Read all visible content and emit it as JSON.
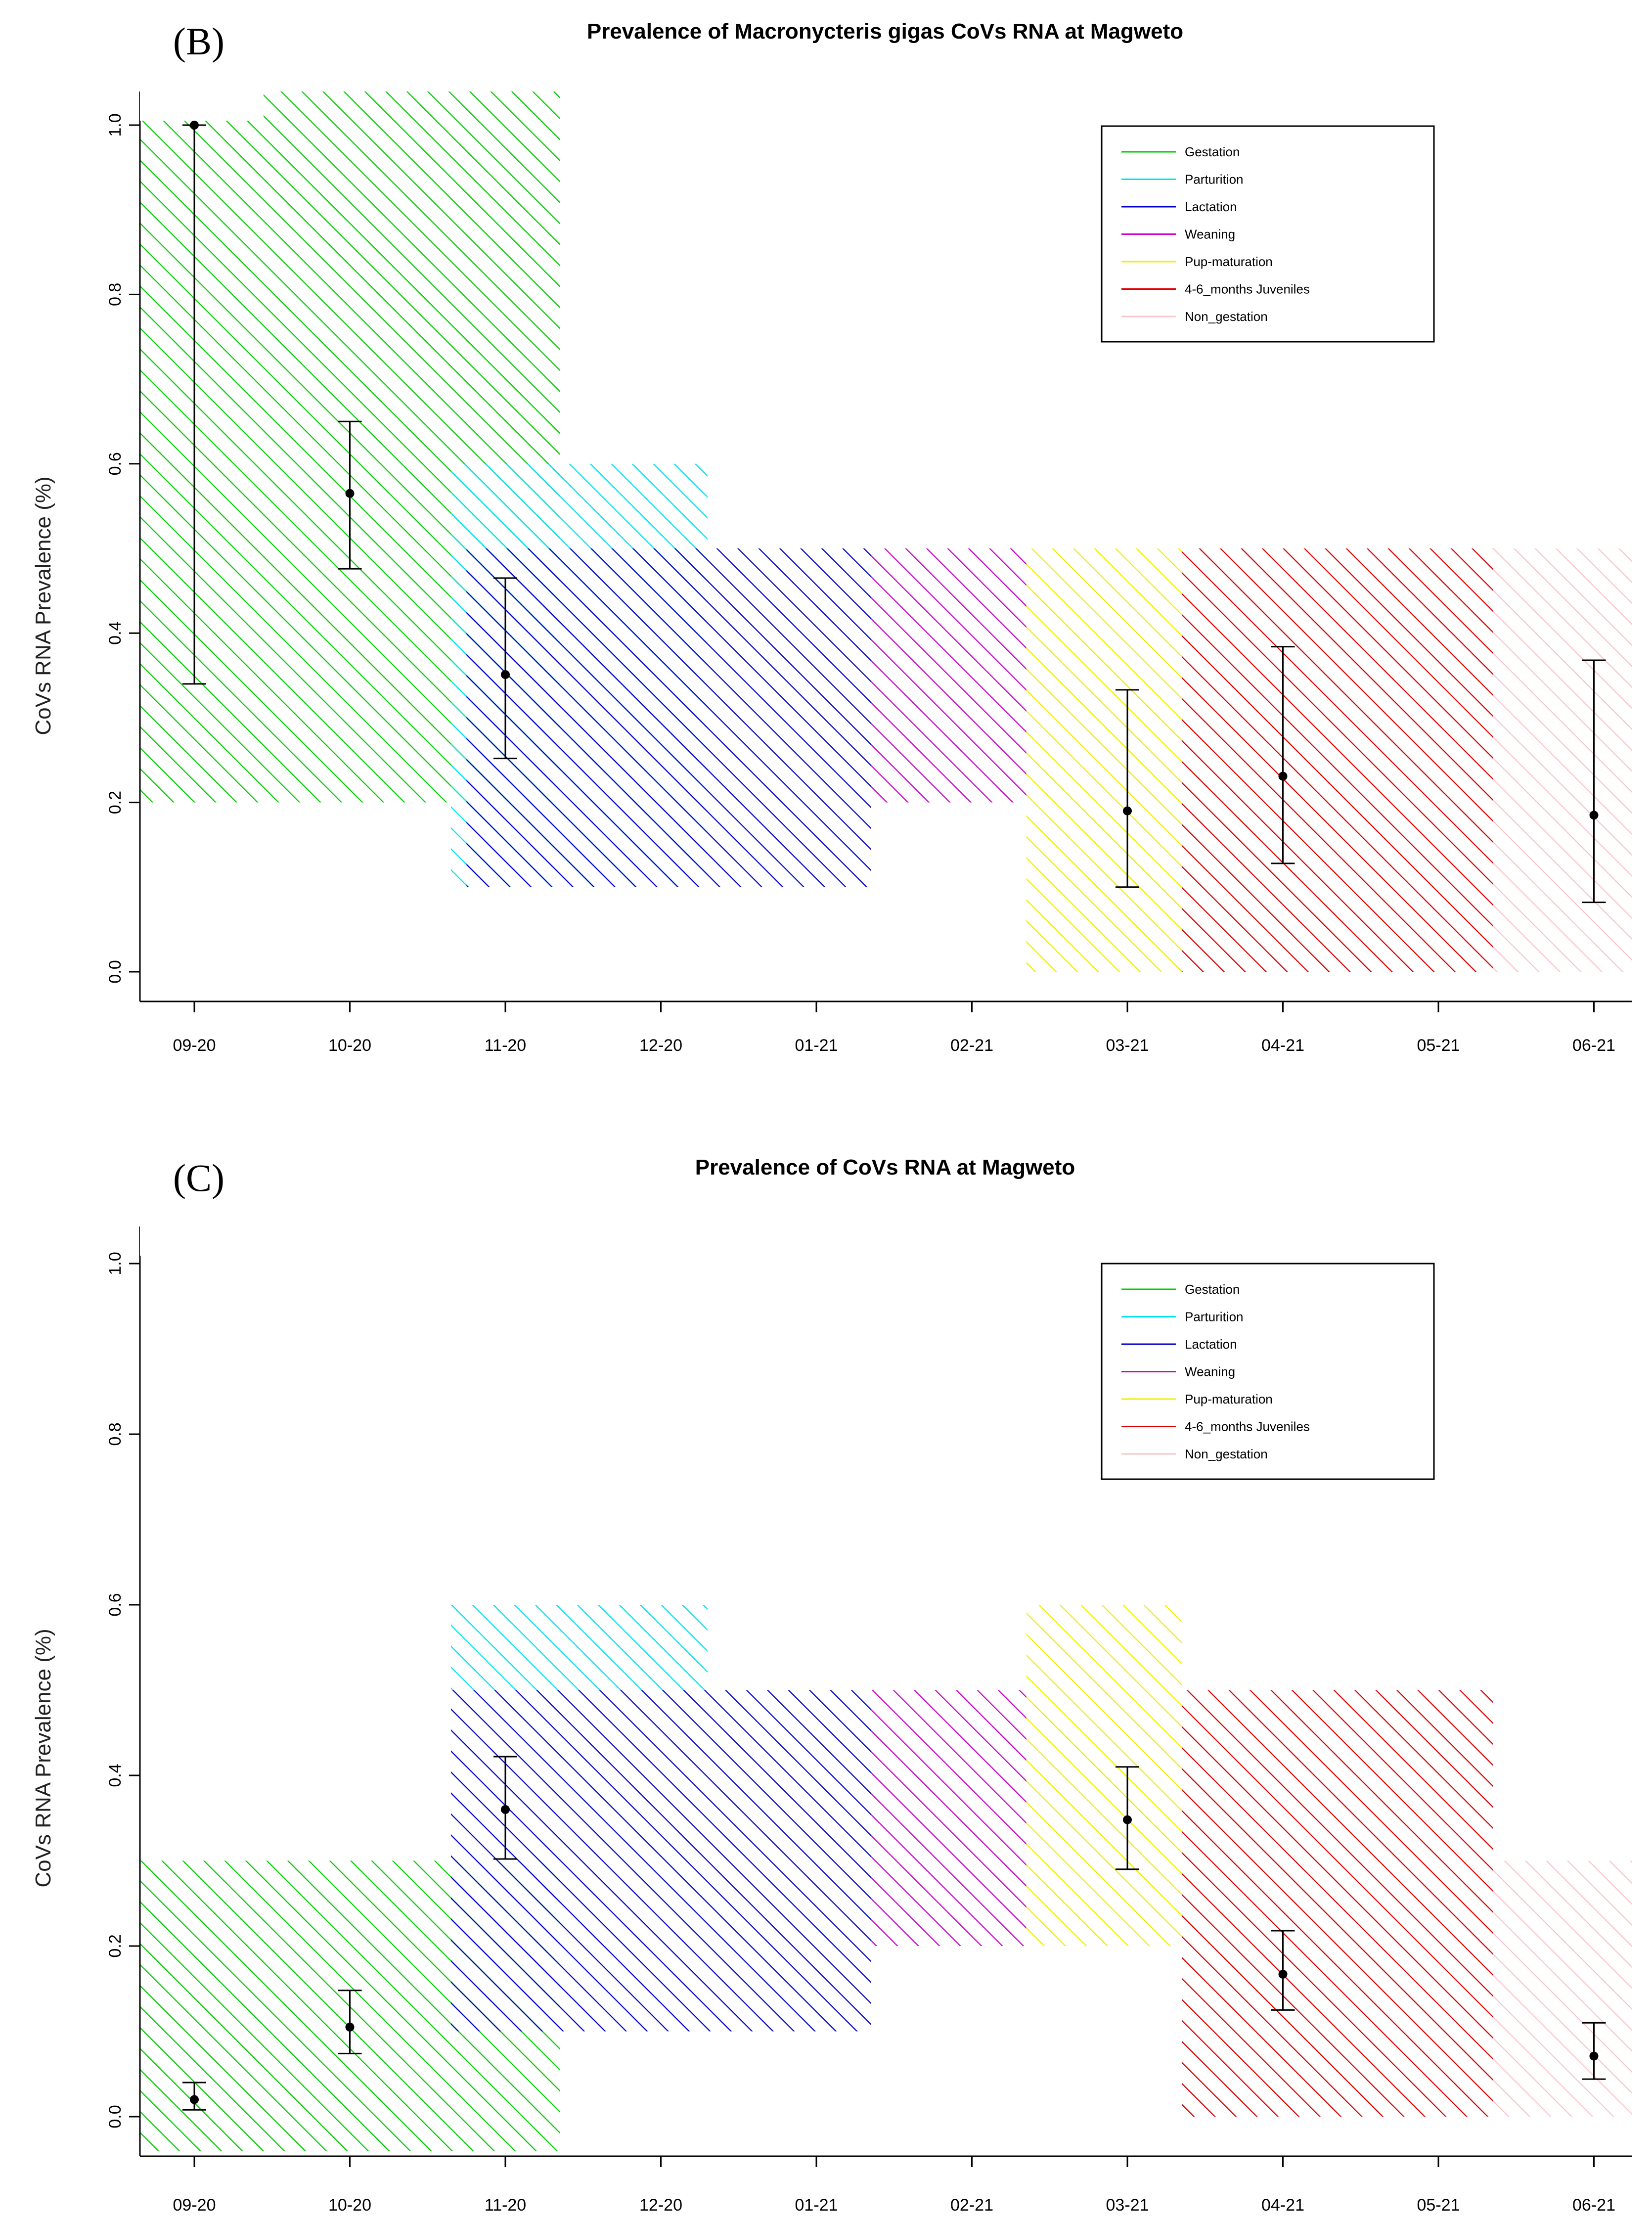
{
  "chart_data": [
    {
      "panel": "(B)",
      "type": "scatter",
      "title": "Prevalence of Macronycteris gigas CoVs RNA at Magweto",
      "xlabel": "",
      "ylabel": "CoVs RNA Prevalence (%)",
      "ylim": [
        0,
        1.0
      ],
      "yticks": [
        "0.0",
        "0.2",
        "0.4",
        "0.6",
        "0.8",
        "1.0"
      ],
      "categories": [
        "09-20",
        "10-20",
        "11-20",
        "12-20",
        "01-21",
        "02-21",
        "03-21",
        "04-21",
        "05-21",
        "06-21"
      ],
      "series": [
        {
          "points": [
            {
              "x": "09-20",
              "y": 1.0,
              "lower": 0.34,
              "upper": 1.0
            },
            {
              "x": "10-20",
              "y": 0.565,
              "lower": 0.476,
              "upper": 0.65
            },
            {
              "x": "11-20",
              "y": 0.351,
              "lower": 0.252,
              "upper": 0.465
            },
            {
              "x": "03-21",
              "y": 0.19,
              "lower": 0.1,
              "upper": 0.333
            },
            {
              "x": "04-21",
              "y": 0.231,
              "lower": 0.128,
              "upper": 0.384
            },
            {
              "x": "06-21",
              "y": 0.185,
              "lower": 0.082,
              "upper": 0.368
            }
          ]
        }
      ],
      "regions": [
        {
          "name": "Gestation",
          "color": "#00d000",
          "from": -0.35,
          "to": 2.35,
          "ymin": 0.2,
          "ymax": 1.04
        },
        {
          "name": "Parturition",
          "color": "#00e5f0",
          "from": 1.65,
          "to": 3.3,
          "ymin": 0.1,
          "ymax": 0.6
        },
        {
          "name": "Lactation",
          "color": "#0000cc",
          "from": 1.75,
          "to": 4.35,
          "ymin": 0.1,
          "ymax": 0.5
        },
        {
          "name": "Weaning",
          "color": "#d000d0",
          "from": 4.35,
          "to": 5.35,
          "ymin": 0.2,
          "ymax": 0.5
        },
        {
          "name": "Pup-maturation",
          "color": "#f0f000",
          "from": 5.35,
          "to": 6.35,
          "ymin": 0.0,
          "ymax": 0.5
        },
        {
          "name": "4-6_months Juveniles",
          "color": "#dd0000",
          "from": 6.35,
          "to": 8.35,
          "ymin": 0.0,
          "ymax": 0.5
        },
        {
          "name": "Non_gestation",
          "color": "#f6c6cc",
          "from": 8.35,
          "to": 9.3,
          "ymin": 0.0,
          "ymax": 0.5
        }
      ],
      "legend": {
        "placement": "top-right",
        "entries": [
          {
            "label": "Gestation",
            "color": "#00d000"
          },
          {
            "label": "Parturition",
            "color": "#00e5f0"
          },
          {
            "label": "Lactation",
            "color": "#0000cc"
          },
          {
            "label": "Weaning",
            "color": "#d000d0"
          },
          {
            "label": "Pup-maturation",
            "color": "#f0f000"
          },
          {
            "label": "4-6_months Juveniles",
            "color": "#dd0000"
          },
          {
            "label": "Non_gestation",
            "color": "#f6c6cc"
          }
        ]
      },
      "grid": false
    },
    {
      "panel": "(C)",
      "type": "scatter",
      "title": "Prevalence of CoVs RNA at Magweto",
      "xlabel": "",
      "ylabel": "CoVs RNA Prevalence (%)",
      "ylim": [
        0,
        1.0
      ],
      "yticks": [
        "0.0",
        "0.2",
        "0.4",
        "0.6",
        "0.8",
        "1.0"
      ],
      "categories": [
        "09-20",
        "10-20",
        "11-20",
        "12-20",
        "01-21",
        "02-21",
        "03-21",
        "04-21",
        "05-21",
        "06-21"
      ],
      "series": [
        {
          "points": [
            {
              "x": "09-20",
              "y": 0.02,
              "lower": 0.008,
              "upper": 0.04
            },
            {
              "x": "10-20",
              "y": 0.105,
              "lower": 0.074,
              "upper": 0.148
            },
            {
              "x": "11-20",
              "y": 0.36,
              "lower": 0.302,
              "upper": 0.422
            },
            {
              "x": "03-21",
              "y": 0.348,
              "lower": 0.29,
              "upper": 0.41
            },
            {
              "x": "04-21",
              "y": 0.167,
              "lower": 0.125,
              "upper": 0.218
            },
            {
              "x": "06-21",
              "y": 0.071,
              "lower": 0.044,
              "upper": 0.11
            }
          ]
        }
      ],
      "regions": [
        {
          "name": "Gestation",
          "color": "#00d000",
          "from": -0.35,
          "to": 2.35,
          "ymin": -0.04,
          "ymax": 0.3
        },
        {
          "name": "Parturition",
          "color": "#00e5f0",
          "from": 1.65,
          "to": 3.3,
          "ymin": 0.5,
          "ymax": 0.6
        },
        {
          "name": "Lactation",
          "color": "#0000cc",
          "from": 1.65,
          "to": 4.35,
          "ymin": 0.1,
          "ymax": 0.5
        },
        {
          "name": "Weaning",
          "color": "#d000d0",
          "from": 4.35,
          "to": 5.35,
          "ymin": 0.2,
          "ymax": 0.5
        },
        {
          "name": "Pup-maturation",
          "color": "#f0f000",
          "from": 5.35,
          "to": 6.35,
          "ymin": 0.2,
          "ymax": 0.6
        },
        {
          "name": "4-6_months Juveniles",
          "color": "#dd0000",
          "from": 6.35,
          "to": 8.35,
          "ymin": 0.0,
          "ymax": 0.5
        },
        {
          "name": "Non_gestation",
          "color": "#f6c6cc",
          "from": 8.35,
          "to": 9.3,
          "ymin": 0.0,
          "ymax": 0.3
        }
      ],
      "legend": {
        "placement": "top-right",
        "entries": [
          {
            "label": "Gestation",
            "color": "#00d000"
          },
          {
            "label": "Parturition",
            "color": "#00e5f0"
          },
          {
            "label": "Lactation",
            "color": "#0000cc"
          },
          {
            "label": "Weaning",
            "color": "#d000d0"
          },
          {
            "label": "Pup-maturation",
            "color": "#f0f000"
          },
          {
            "label": "4-6_months Juveniles",
            "color": "#dd0000"
          },
          {
            "label": "Non_gestation",
            "color": "#f6c6cc"
          }
        ]
      },
      "grid": false
    }
  ]
}
